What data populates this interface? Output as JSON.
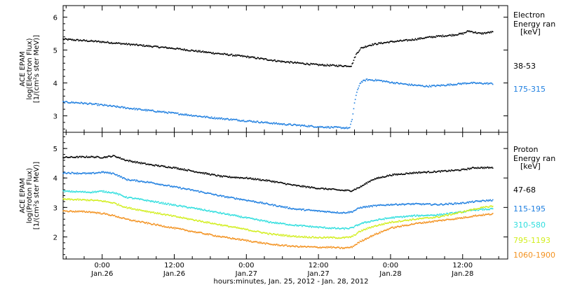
{
  "colors": {
    "black": "#000000",
    "blue": "#1f7fe0",
    "cyan": "#2fdede",
    "yellow": "#d2ee1e",
    "orange": "#f39220"
  },
  "x_axis": {
    "label": "hours:minutes, Jan. 25, 2012 - Jan. 28, 2012",
    "ticks": [
      {
        "hour": 24,
        "time": "0:00",
        "date": "Jan.26"
      },
      {
        "hour": 36,
        "time": "12:00",
        "date": "Jan.26"
      },
      {
        "hour": 48,
        "time": "0:00",
        "date": "Jan.27"
      },
      {
        "hour": 60,
        "time": "12:00",
        "date": "Jan.27"
      },
      {
        "hour": 72,
        "time": "0:00",
        "date": "Jan.28"
      },
      {
        "hour": 84,
        "time": "12:00",
        "date": "Jan.28"
      }
    ],
    "range_hours": [
      17.5,
      91.5
    ]
  },
  "chart_data": [
    {
      "type": "scatter",
      "name": "electron",
      "ylabel": [
        "ACE EPAM",
        "log(Electron Flux)",
        "[1/(cm²s ster MeV)]"
      ],
      "ylim": [
        2.5,
        6.35
      ],
      "yticks": [
        3,
        4,
        5,
        6
      ],
      "legend_title": [
        "Electron",
        "Energy ran",
        "[keV]"
      ],
      "series": [
        {
          "name": "38-53",
          "color_key": "black",
          "x": [
            17.5,
            20,
            24,
            30,
            36,
            42,
            48,
            54,
            60,
            64,
            65.5,
            66.2,
            67,
            68.5,
            70,
            72,
            75,
            78,
            80,
            82,
            84,
            85,
            87,
            89
          ],
          "y": [
            5.33,
            5.3,
            5.25,
            5.15,
            5.05,
            4.92,
            4.8,
            4.65,
            4.55,
            4.52,
            4.52,
            4.85,
            5.05,
            5.15,
            5.2,
            5.25,
            5.3,
            5.38,
            5.42,
            5.45,
            5.5,
            5.58,
            5.5,
            5.55
          ]
        },
        {
          "name": "175-315",
          "color_key": "blue",
          "x": [
            17.5,
            20,
            24,
            30,
            36,
            42,
            48,
            54,
            60,
            64,
            65.2,
            65.6,
            66,
            66.5,
            67,
            68,
            70,
            72,
            75,
            78,
            80,
            82,
            85,
            89
          ],
          "y": [
            3.42,
            3.4,
            3.33,
            3.2,
            3.08,
            2.95,
            2.85,
            2.75,
            2.67,
            2.64,
            2.63,
            2.9,
            3.4,
            3.8,
            4.02,
            4.1,
            4.08,
            4.02,
            3.95,
            3.9,
            3.92,
            3.95,
            4.0,
            3.98
          ]
        }
      ]
    },
    {
      "type": "scatter",
      "name": "proton",
      "ylabel": [
        "ACE EPAM",
        "log(Proton Flux)",
        "[1/(cm²s ster MeV)]"
      ],
      "ylim": [
        1.25,
        5.55
      ],
      "yticks": [
        2,
        3,
        4,
        5
      ],
      "legend_title": [
        "Proton",
        "Energy ran",
        "[keV]"
      ],
      "series": [
        {
          "name": "47-68",
          "color_key": "black",
          "x": [
            17.5,
            22,
            24,
            26,
            28,
            32,
            36,
            40,
            44,
            48,
            52,
            56,
            60,
            62,
            64,
            65.5,
            67,
            69,
            72,
            76,
            80,
            84,
            86,
            89
          ],
          "y": [
            4.7,
            4.72,
            4.7,
            4.75,
            4.6,
            4.45,
            4.35,
            4.2,
            4.05,
            4.0,
            3.9,
            3.75,
            3.65,
            3.62,
            3.58,
            3.57,
            3.7,
            3.95,
            4.1,
            4.18,
            4.22,
            4.28,
            4.35,
            4.35
          ]
        },
        {
          "name": "115-195",
          "color_key": "blue",
          "x": [
            17.5,
            22,
            24,
            26,
            28,
            32,
            36,
            40,
            44,
            48,
            52,
            56,
            60,
            62,
            64,
            65.5,
            67,
            69,
            72,
            76,
            80,
            84,
            86,
            89
          ],
          "y": [
            4.18,
            4.15,
            4.2,
            4.15,
            3.95,
            3.85,
            3.7,
            3.55,
            3.38,
            3.25,
            3.1,
            2.95,
            2.88,
            2.85,
            2.82,
            2.85,
            3.0,
            3.05,
            3.1,
            3.12,
            3.1,
            3.15,
            3.2,
            3.25
          ]
        },
        {
          "name": "310-580",
          "color_key": "cyan",
          "x": [
            17.5,
            22,
            24,
            26,
            28,
            32,
            36,
            40,
            44,
            48,
            52,
            56,
            60,
            62,
            64,
            65.5,
            67,
            69,
            72,
            76,
            80,
            84,
            86,
            89
          ],
          "y": [
            3.55,
            3.52,
            3.55,
            3.5,
            3.35,
            3.22,
            3.08,
            2.95,
            2.8,
            2.65,
            2.5,
            2.4,
            2.33,
            2.3,
            2.28,
            2.3,
            2.45,
            2.55,
            2.65,
            2.72,
            2.75,
            2.85,
            2.92,
            2.95
          ]
        },
        {
          "name": "795-1193",
          "color_key": "yellow",
          "x": [
            17.5,
            22,
            24,
            26,
            28,
            32,
            36,
            40,
            44,
            48,
            52,
            56,
            60,
            62,
            64,
            65.5,
            67,
            69,
            72,
            76,
            80,
            84,
            86,
            89
          ],
          "y": [
            3.28,
            3.25,
            3.22,
            3.15,
            3.0,
            2.85,
            2.7,
            2.55,
            2.4,
            2.25,
            2.1,
            2.02,
            1.98,
            1.98,
            1.97,
            2.0,
            2.2,
            2.35,
            2.5,
            2.6,
            2.68,
            2.85,
            2.95,
            3.05
          ]
        },
        {
          "name": "1060-1900",
          "color_key": "orange",
          "x": [
            17.5,
            22,
            24,
            26,
            28,
            32,
            36,
            40,
            44,
            48,
            52,
            56,
            60,
            62,
            64,
            65.5,
            67,
            69,
            72,
            76,
            80,
            84,
            86,
            89
          ],
          "y": [
            2.88,
            2.85,
            2.8,
            2.72,
            2.6,
            2.45,
            2.3,
            2.15,
            2.0,
            1.88,
            1.75,
            1.68,
            1.65,
            1.65,
            1.62,
            1.65,
            1.85,
            2.05,
            2.3,
            2.45,
            2.55,
            2.65,
            2.72,
            2.78
          ]
        }
      ]
    }
  ]
}
